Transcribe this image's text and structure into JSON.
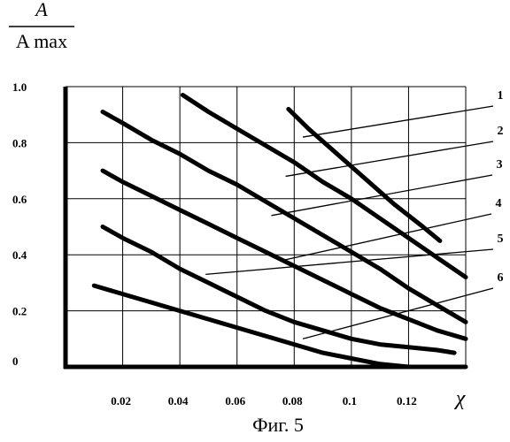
{
  "chart_data": {
    "type": "line",
    "ylabel": {
      "numerator": "A",
      "denominator": "A max"
    },
    "xlabel": "χ",
    "caption": "Фиг. 5",
    "xlim": [
      0.0,
      0.14
    ],
    "ylim": [
      0.0,
      1.0
    ],
    "x_ticks": [
      {
        "value": 0.02,
        "label": "0.02"
      },
      {
        "value": 0.04,
        "label": "0.04"
      },
      {
        "value": 0.06,
        "label": "0.06"
      },
      {
        "value": 0.08,
        "label": "0.08"
      },
      {
        "value": 0.1,
        "label": "0.1"
      },
      {
        "value": 0.12,
        "label": "0.12"
      }
    ],
    "y_ticks": [
      {
        "value": 0.0,
        "label": "0"
      },
      {
        "value": 0.2,
        "label": "0.2"
      },
      {
        "value": 0.4,
        "label": "0.4"
      },
      {
        "value": 0.6,
        "label": "0.6"
      },
      {
        "value": 0.8,
        "label": "0.8"
      },
      {
        "value": 1.0,
        "label": "1.0"
      }
    ],
    "grid": true,
    "series": [
      {
        "label": "1",
        "label_anchor": [
          0.083,
          0.82
        ],
        "x": [
          0.078,
          0.085,
          0.095,
          0.105,
          0.115,
          0.125,
          0.131
        ],
        "y": [
          0.92,
          0.85,
          0.76,
          0.67,
          0.58,
          0.5,
          0.45
        ]
      },
      {
        "label": "2",
        "label_anchor": [
          0.077,
          0.68
        ],
        "x": [
          0.041,
          0.05,
          0.06,
          0.07,
          0.08,
          0.09,
          0.1,
          0.11,
          0.12,
          0.13,
          0.14
        ],
        "y": [
          0.97,
          0.91,
          0.85,
          0.79,
          0.73,
          0.66,
          0.6,
          0.53,
          0.46,
          0.39,
          0.32
        ]
      },
      {
        "label": "3",
        "label_anchor": [
          0.072,
          0.54
        ],
        "x": [
          0.013,
          0.02,
          0.03,
          0.04,
          0.05,
          0.06,
          0.07,
          0.08,
          0.09,
          0.1,
          0.11,
          0.12,
          0.13,
          0.14
        ],
        "y": [
          0.91,
          0.87,
          0.81,
          0.76,
          0.7,
          0.65,
          0.59,
          0.53,
          0.47,
          0.41,
          0.35,
          0.28,
          0.22,
          0.16
        ]
      },
      {
        "label": "4",
        "label_anchor": [
          0.076,
          0.38
        ],
        "x": [
          0.013,
          0.02,
          0.03,
          0.04,
          0.05,
          0.06,
          0.07,
          0.08,
          0.09,
          0.1,
          0.11,
          0.12,
          0.13,
          0.14
        ],
        "y": [
          0.7,
          0.66,
          0.61,
          0.56,
          0.51,
          0.46,
          0.41,
          0.36,
          0.31,
          0.26,
          0.21,
          0.17,
          0.13,
          0.1
        ]
      },
      {
        "label": "5",
        "label_anchor": [
          0.049,
          0.33
        ],
        "x": [
          0.013,
          0.02,
          0.03,
          0.04,
          0.05,
          0.06,
          0.07,
          0.08,
          0.09,
          0.1,
          0.11,
          0.12,
          0.13,
          0.136
        ],
        "y": [
          0.5,
          0.46,
          0.41,
          0.35,
          0.3,
          0.25,
          0.2,
          0.16,
          0.13,
          0.1,
          0.08,
          0.07,
          0.06,
          0.05
        ]
      },
      {
        "label": "6",
        "label_anchor": [
          0.083,
          0.1
        ],
        "x": [
          0.01,
          0.02,
          0.03,
          0.04,
          0.05,
          0.06,
          0.07,
          0.08,
          0.09,
          0.1,
          0.11,
          0.12,
          0.13,
          0.14
        ],
        "y": [
          0.29,
          0.26,
          0.23,
          0.2,
          0.17,
          0.14,
          0.11,
          0.08,
          0.05,
          0.03,
          0.01,
          0.0,
          0.0,
          0.0
        ]
      }
    ]
  }
}
